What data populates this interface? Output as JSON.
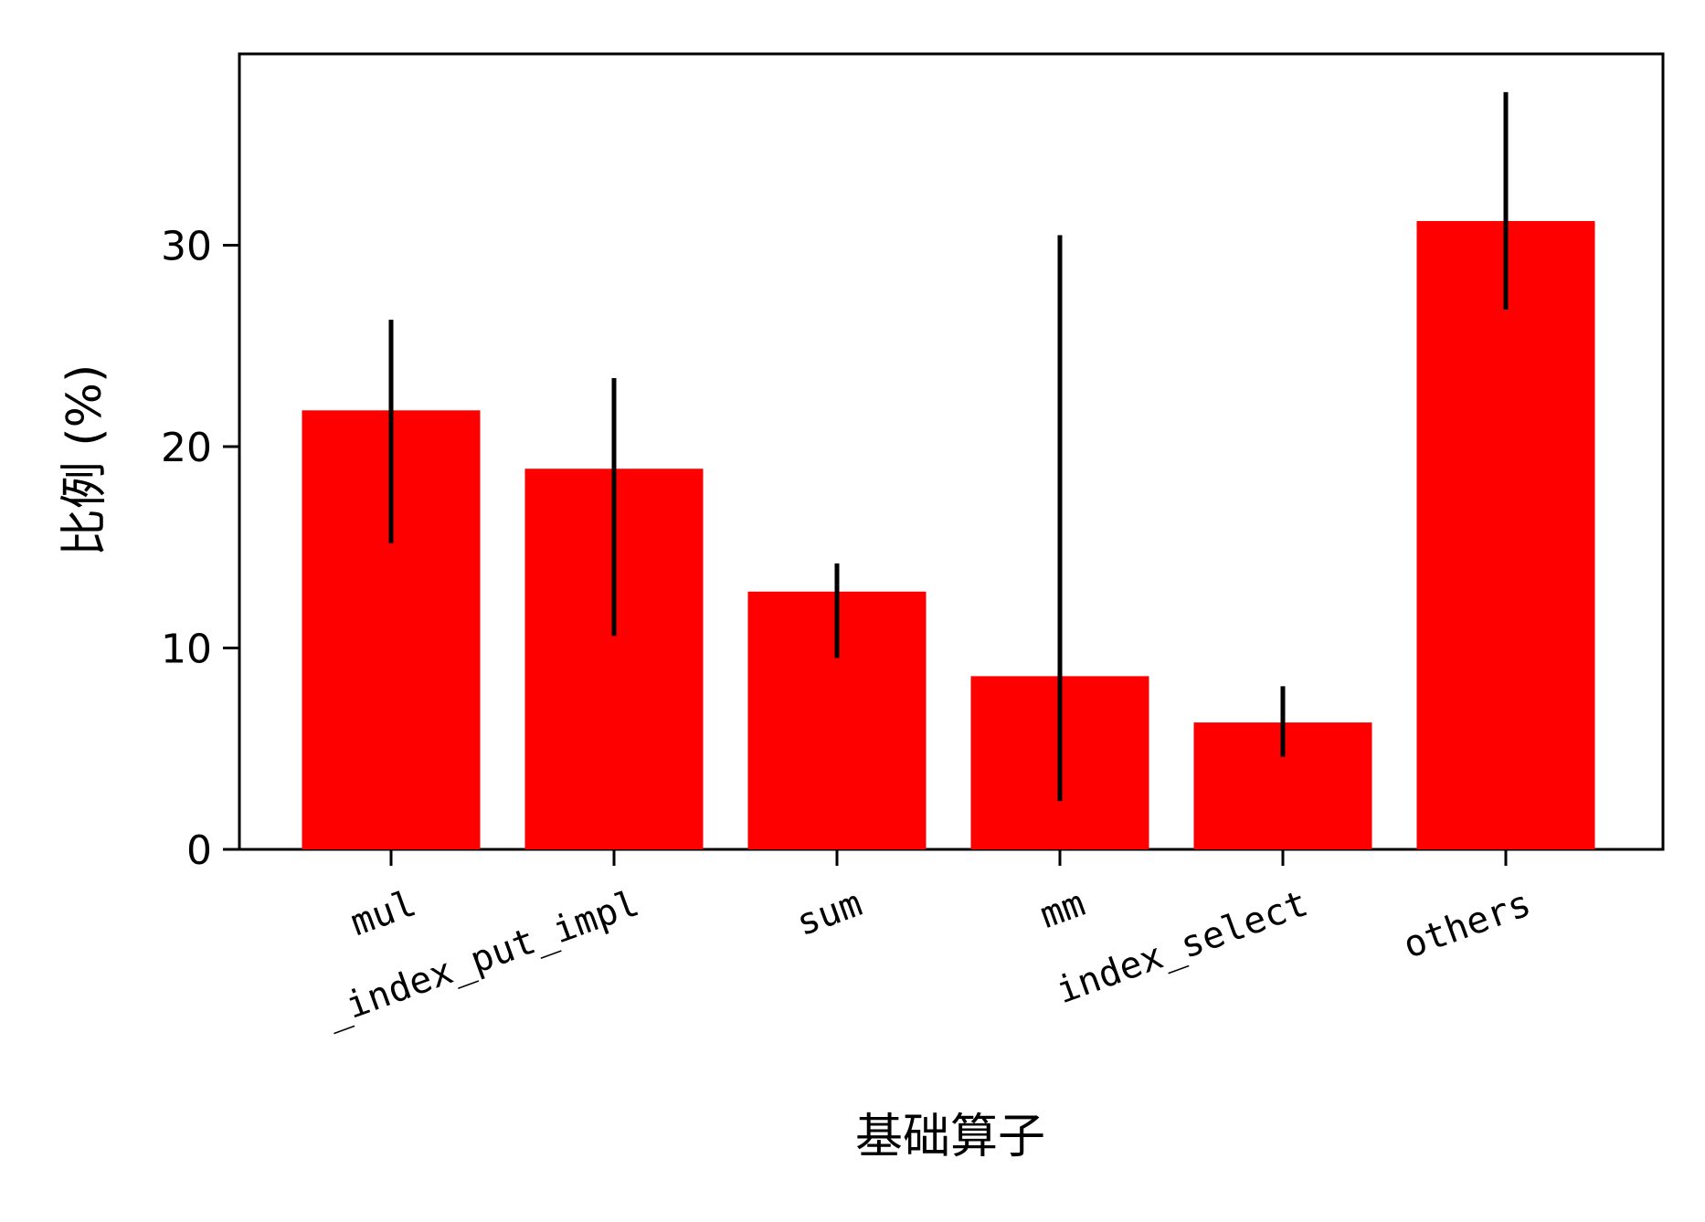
{
  "chart_data": {
    "type": "bar",
    "xlabel": "基础算子",
    "ylabel": "比例 (%)",
    "categories": [
      "mul",
      "_index_put_impl",
      "sum",
      "mm",
      "index_select",
      "others"
    ],
    "values": [
      21.8,
      18.9,
      12.8,
      8.6,
      6.3,
      31.2
    ],
    "error_low": [
      15.2,
      10.6,
      9.5,
      2.4,
      4.6,
      26.8
    ],
    "error_high": [
      26.3,
      23.4,
      14.2,
      30.5,
      8.1,
      37.6
    ],
    "ylim": [
      0,
      39.5
    ],
    "yticks": [
      0,
      10,
      20,
      30
    ],
    "bar_color": "#ff0000",
    "error_color": "#000000",
    "grid": false,
    "legend": "none",
    "category_label_rotation_deg": -20
  }
}
